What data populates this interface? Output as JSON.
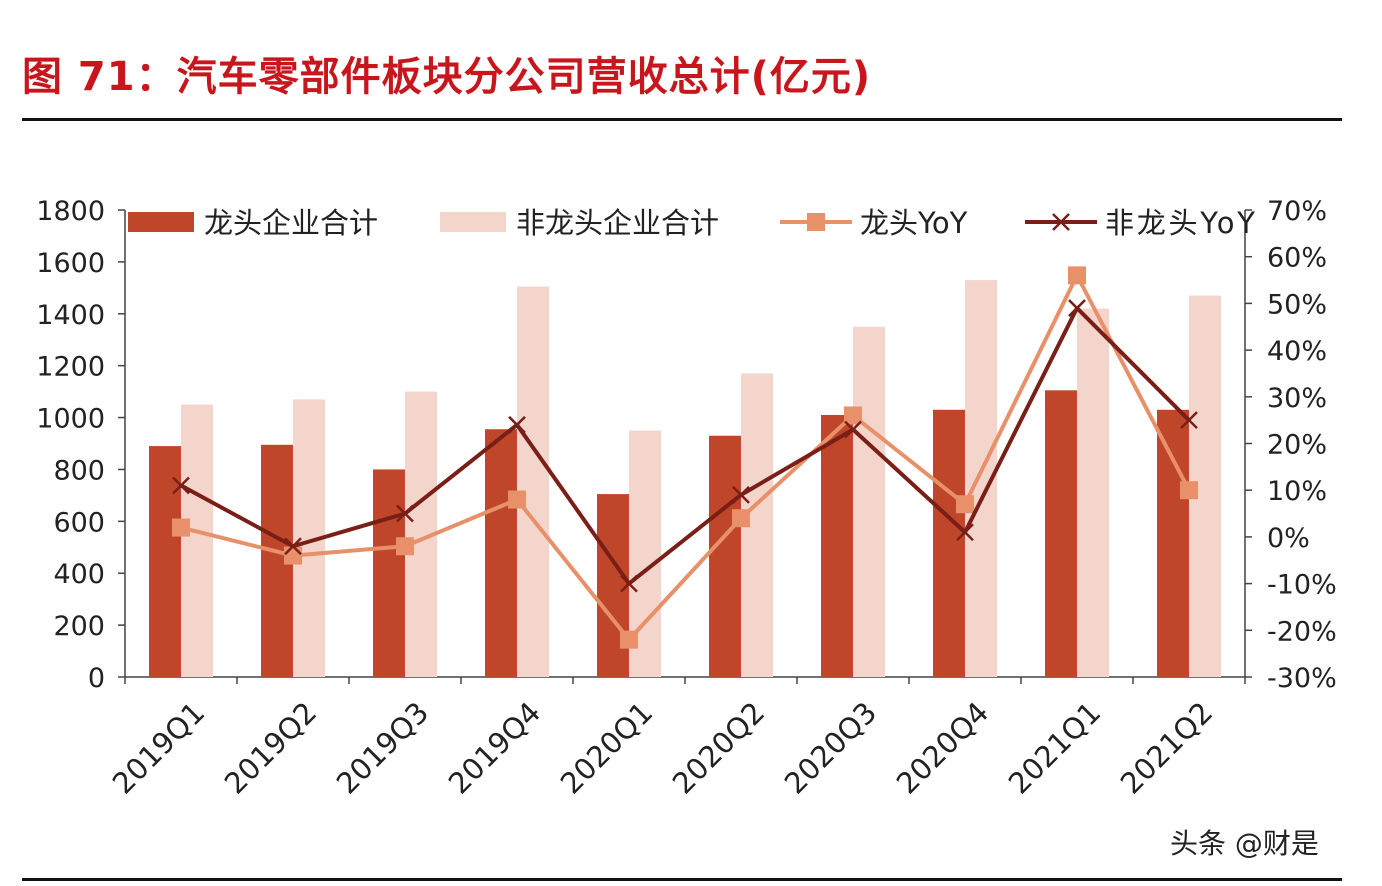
{
  "figure": {
    "title": "图 71：汽车零部件板块分公司营收总计(亿元)"
  },
  "watermark": "头条 @财是",
  "colors": {
    "title": "#c8161d",
    "bar_leader": "#c0462a",
    "bar_non_leader": "#f3d5cb",
    "line_leader": "#e8906a",
    "line_non_leader": "#7a1f17",
    "axis": "#444444",
    "text": "#222222"
  },
  "chart_data": {
    "type": "bar",
    "title": "",
    "categories": [
      "2019Q1",
      "2019Q2",
      "2019Q3",
      "2019Q4",
      "2020Q1",
      "2020Q2",
      "2020Q3",
      "2020Q4",
      "2021Q1",
      "2021Q2"
    ],
    "series": [
      {
        "name": "龙头企业合计",
        "type": "bar",
        "axis": "left",
        "values": [
          890,
          895,
          800,
          955,
          705,
          930,
          1010,
          1030,
          1105,
          1030
        ]
      },
      {
        "name": "非龙头企业合计",
        "type": "bar",
        "axis": "left",
        "values": [
          1050,
          1070,
          1100,
          1505,
          950,
          1170,
          1350,
          1530,
          1420,
          1470
        ]
      },
      {
        "name": "龙头YoY",
        "type": "line",
        "axis": "right",
        "marker": "square",
        "values": [
          2,
          -4,
          -2,
          8,
          -22,
          4,
          26,
          7,
          56,
          10
        ]
      },
      {
        "name": "非龙头YoY",
        "type": "line",
        "axis": "right",
        "marker": "x",
        "values": [
          11,
          -2,
          5,
          24,
          -10,
          9,
          23,
          1,
          49,
          25
        ]
      }
    ],
    "y_left": {
      "min": 0,
      "max": 1800,
      "ticks": [
        "0",
        "200",
        "400",
        "600",
        "800",
        "1000",
        "1200",
        "1400",
        "1600",
        "1800"
      ]
    },
    "y_right": {
      "min": -30,
      "max": 70,
      "ticks": [
        "-30%",
        "-20%",
        "-10%",
        "0%",
        "10%",
        "20%",
        "30%",
        "40%",
        "50%",
        "60%",
        "70%"
      ]
    },
    "legend": {
      "position": "top",
      "items": [
        "龙头企业合计",
        "非龙头企业合计",
        "龙头YoY",
        "非龙头YoY"
      ]
    },
    "grid": false
  }
}
